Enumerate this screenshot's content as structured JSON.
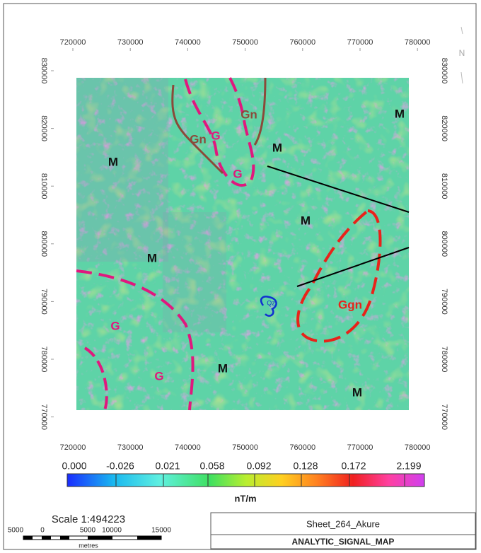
{
  "map": {
    "x_ticks": [
      720000,
      730000,
      740000,
      750000,
      760000,
      770000,
      780000
    ],
    "y_ticks": [
      830000,
      820000,
      810000,
      800000,
      790000,
      780000,
      770000
    ],
    "north": "N",
    "labels": [
      "M",
      "M",
      "M",
      "M",
      "M",
      "M",
      "M",
      "G",
      "G",
      "G",
      "G",
      "Gn",
      "Gn",
      "Ggn",
      "Qz"
    ]
  },
  "legend": {
    "class_labels": [
      "0.000",
      "-0.026",
      "0.021",
      "0.058",
      "0.092",
      "0.128",
      "0.172",
      "2.199"
    ],
    "unit": "nT/m"
  },
  "scale": {
    "title": "Scale 1:494223",
    "ticks": [
      "5000",
      "0",
      "5000",
      "10000",
      "15000"
    ],
    "unit": "metres"
  },
  "title_box": {
    "sheet": "Sheet_264_Akure",
    "map_name": "ANALYTIC_SIGNAL_MAP"
  }
}
